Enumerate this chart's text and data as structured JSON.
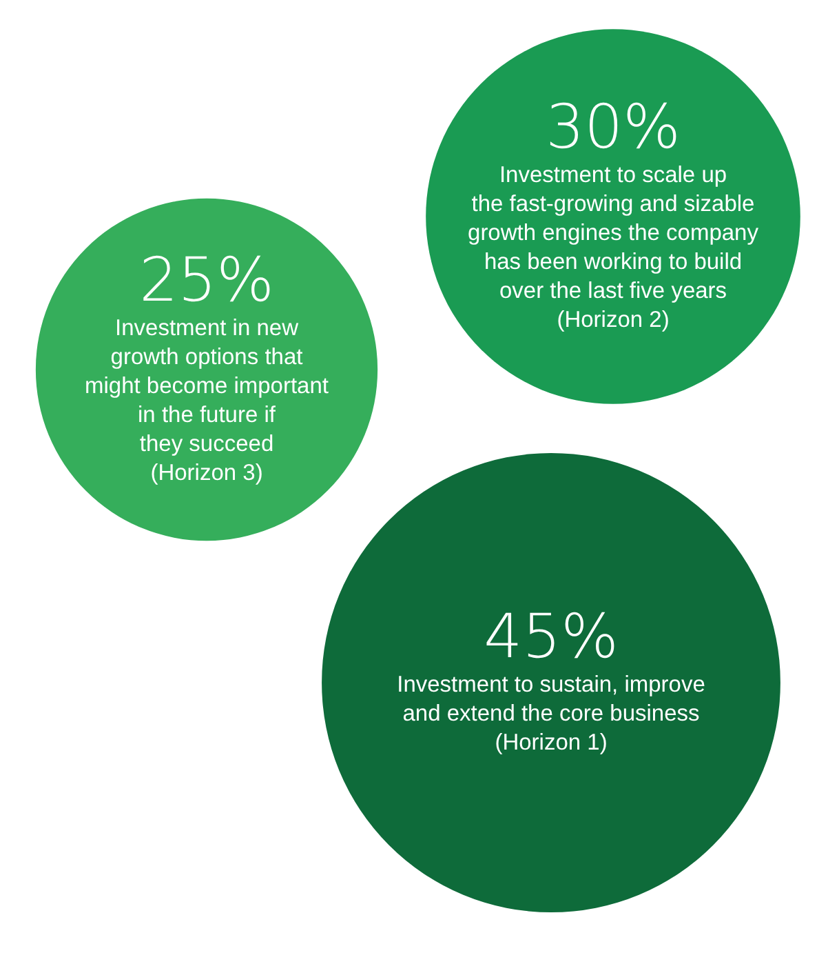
{
  "chart_data": {
    "type": "other",
    "categories": [
      "Investment to scale up\nthe fast-growing and sizable\ngrowth engines the company\nhas been working to build\nover the last five years\n(Horizon 2)",
      "Investment in new\ngrowth options that\nmight become important\nin the future if\nthey succeed\n(Horizon 3)",
      "Investment to sustain, improve\nand extend the core business\n(Horizon 1)"
    ],
    "values": [
      30,
      25,
      45
    ],
    "value_labels": [
      "30%",
      "25%",
      "45%"
    ],
    "colors": [
      "#1a9b53",
      "#35ae5b",
      "#0e6b3a"
    ]
  }
}
